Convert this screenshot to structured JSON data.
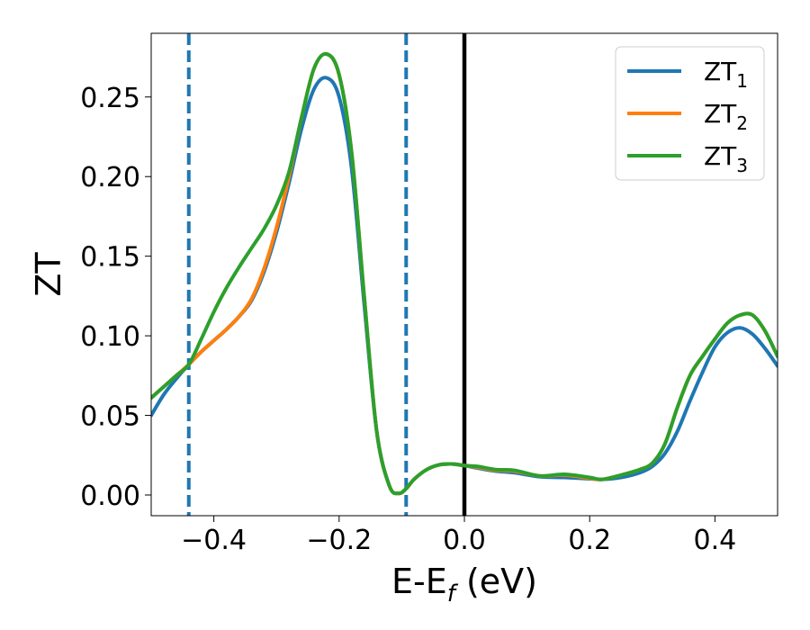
{
  "chart_data": {
    "type": "line",
    "xlabel_main": "E-E",
    "xlabel_sub": "f",
    "xlabel_unit": " (eV)",
    "ylabel": "ZT",
    "xlim": [
      -0.5,
      0.5
    ],
    "ylim": [
      -0.013,
      0.29
    ],
    "xticks": [
      -0.4,
      -0.2,
      0.0,
      0.2,
      0.4
    ],
    "xtick_labels": [
      "−0.4",
      "−0.2",
      "0.0",
      "0.2",
      "0.4"
    ],
    "yticks": [
      0.0,
      0.05,
      0.1,
      0.15,
      0.2,
      0.25
    ],
    "ytick_labels": [
      "0.00",
      "0.05",
      "0.10",
      "0.15",
      "0.20",
      "0.25"
    ],
    "grid": false,
    "legend_position": "top-right",
    "vlines": [
      {
        "x": -0.44,
        "style": "dashed",
        "color": "#1f77b4"
      },
      {
        "x": -0.093,
        "style": "dashed",
        "color": "#1f77b4"
      },
      {
        "x": 0.0,
        "style": "solid",
        "color": "#000000"
      }
    ],
    "series": [
      {
        "name": "ZT",
        "sub": "1",
        "color": "#1f77b4",
        "x": [
          -0.5,
          -0.48,
          -0.46,
          -0.44,
          -0.42,
          -0.4,
          -0.38,
          -0.36,
          -0.34,
          -0.32,
          -0.3,
          -0.28,
          -0.26,
          -0.24,
          -0.22,
          -0.2,
          -0.18,
          -0.16,
          -0.14,
          -0.12,
          -0.105,
          -0.093,
          -0.08,
          -0.06,
          -0.04,
          -0.02,
          0.0,
          0.02,
          0.05,
          0.08,
          0.12,
          0.16,
          0.2,
          0.22,
          0.25,
          0.28,
          0.3,
          0.32,
          0.34,
          0.36,
          0.38,
          0.4,
          0.42,
          0.44,
          0.46,
          0.48,
          0.5
        ],
        "y": [
          0.05,
          0.063,
          0.073,
          0.082,
          0.09,
          0.097,
          0.104,
          0.112,
          0.122,
          0.14,
          0.165,
          0.196,
          0.23,
          0.255,
          0.262,
          0.25,
          0.205,
          0.12,
          0.04,
          0.006,
          0.001,
          0.004,
          0.01,
          0.016,
          0.019,
          0.0195,
          0.0185,
          0.017,
          0.015,
          0.014,
          0.0115,
          0.011,
          0.0102,
          0.0098,
          0.011,
          0.014,
          0.018,
          0.026,
          0.04,
          0.059,
          0.077,
          0.093,
          0.102,
          0.105,
          0.101,
          0.092,
          0.081
        ]
      },
      {
        "name": "ZT",
        "sub": "2",
        "color": "#ff7f0e",
        "x": [
          -0.5,
          -0.48,
          -0.46,
          -0.44,
          -0.42,
          -0.4,
          -0.38,
          -0.36,
          -0.34,
          -0.32,
          -0.3,
          -0.28,
          -0.26,
          -0.24,
          -0.22,
          -0.2,
          -0.18,
          -0.16,
          -0.14,
          -0.12,
          -0.105,
          -0.093,
          -0.08,
          -0.06,
          -0.04,
          -0.02,
          0.0,
          0.02,
          0.05,
          0.08,
          0.12,
          0.16,
          0.2,
          0.22,
          0.25,
          0.28,
          0.3,
          0.32,
          0.34,
          0.36,
          0.38,
          0.4,
          0.42,
          0.44,
          0.46,
          0.48,
          0.5
        ],
        "y": [
          0.061,
          0.068,
          0.075,
          0.082,
          0.09,
          0.097,
          0.104,
          0.112,
          0.123,
          0.142,
          0.168,
          0.2,
          0.237,
          0.268,
          0.277,
          0.264,
          0.215,
          0.125,
          0.04,
          0.006,
          0.001,
          0.004,
          0.01,
          0.016,
          0.019,
          0.0195,
          0.0185,
          0.0175,
          0.0155,
          0.015,
          0.012,
          0.0125,
          0.0105,
          0.0098,
          0.0125,
          0.016,
          0.02,
          0.032,
          0.055,
          0.075,
          0.087,
          0.098,
          0.108,
          0.113,
          0.113,
          0.103,
          0.087
        ]
      },
      {
        "name": "ZT",
        "sub": "3",
        "color": "#2ca02c",
        "x": [
          -0.5,
          -0.48,
          -0.46,
          -0.44,
          -0.42,
          -0.4,
          -0.38,
          -0.36,
          -0.34,
          -0.32,
          -0.3,
          -0.28,
          -0.26,
          -0.24,
          -0.22,
          -0.2,
          -0.18,
          -0.16,
          -0.14,
          -0.12,
          -0.105,
          -0.093,
          -0.08,
          -0.06,
          -0.04,
          -0.02,
          0.0,
          0.02,
          0.05,
          0.08,
          0.12,
          0.16,
          0.2,
          0.22,
          0.25,
          0.28,
          0.3,
          0.32,
          0.34,
          0.36,
          0.38,
          0.4,
          0.42,
          0.44,
          0.46,
          0.48,
          0.5
        ],
        "y": [
          0.061,
          0.068,
          0.075,
          0.082,
          0.098,
          0.115,
          0.13,
          0.143,
          0.155,
          0.167,
          0.182,
          0.203,
          0.237,
          0.268,
          0.277,
          0.264,
          0.215,
          0.125,
          0.04,
          0.006,
          0.001,
          0.004,
          0.01,
          0.016,
          0.019,
          0.0195,
          0.0185,
          0.018,
          0.016,
          0.0155,
          0.012,
          0.013,
          0.011,
          0.0098,
          0.0125,
          0.016,
          0.02,
          0.032,
          0.055,
          0.075,
          0.087,
          0.098,
          0.108,
          0.113,
          0.113,
          0.103,
          0.087
        ]
      }
    ]
  }
}
